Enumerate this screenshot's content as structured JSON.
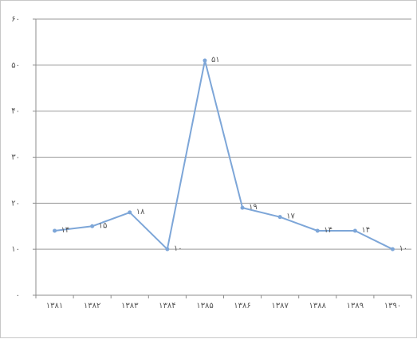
{
  "chart_data": {
    "type": "line",
    "title": "",
    "xlabel": "",
    "ylabel": "",
    "categories": [
      "۱۳۸۱",
      "۱۳۸۲",
      "۱۳۸۳",
      "۱۳۸۴",
      "۱۳۸۵",
      "۱۳۸۶",
      "۱۳۸۷",
      "۱۳۸۸",
      "۱۳۸۹",
      "۱۳۹۰"
    ],
    "values": [
      14,
      15,
      18,
      10,
      51,
      19,
      17,
      14,
      14,
      10
    ],
    "data_labels": [
      "۱۴",
      "۱۵",
      "۱۸",
      "۱۰",
      "۵۱",
      "۱۹",
      "۱۷",
      "۱۴",
      "۱۴",
      "۱۰"
    ],
    "ylim": [
      0,
      60
    ],
    "yticks": [
      0,
      10,
      20,
      30,
      40,
      50,
      60
    ],
    "ytick_labels": [
      "۰",
      "۱۰",
      "۲۰",
      "۳۰",
      "۴۰",
      "۵۰",
      "۶۰"
    ],
    "grid": true,
    "legend": "none",
    "colors": {
      "line": "#7da6d8",
      "grid": "#9a9a9a",
      "axis": "#8c8c8c",
      "text": "#555555"
    }
  }
}
